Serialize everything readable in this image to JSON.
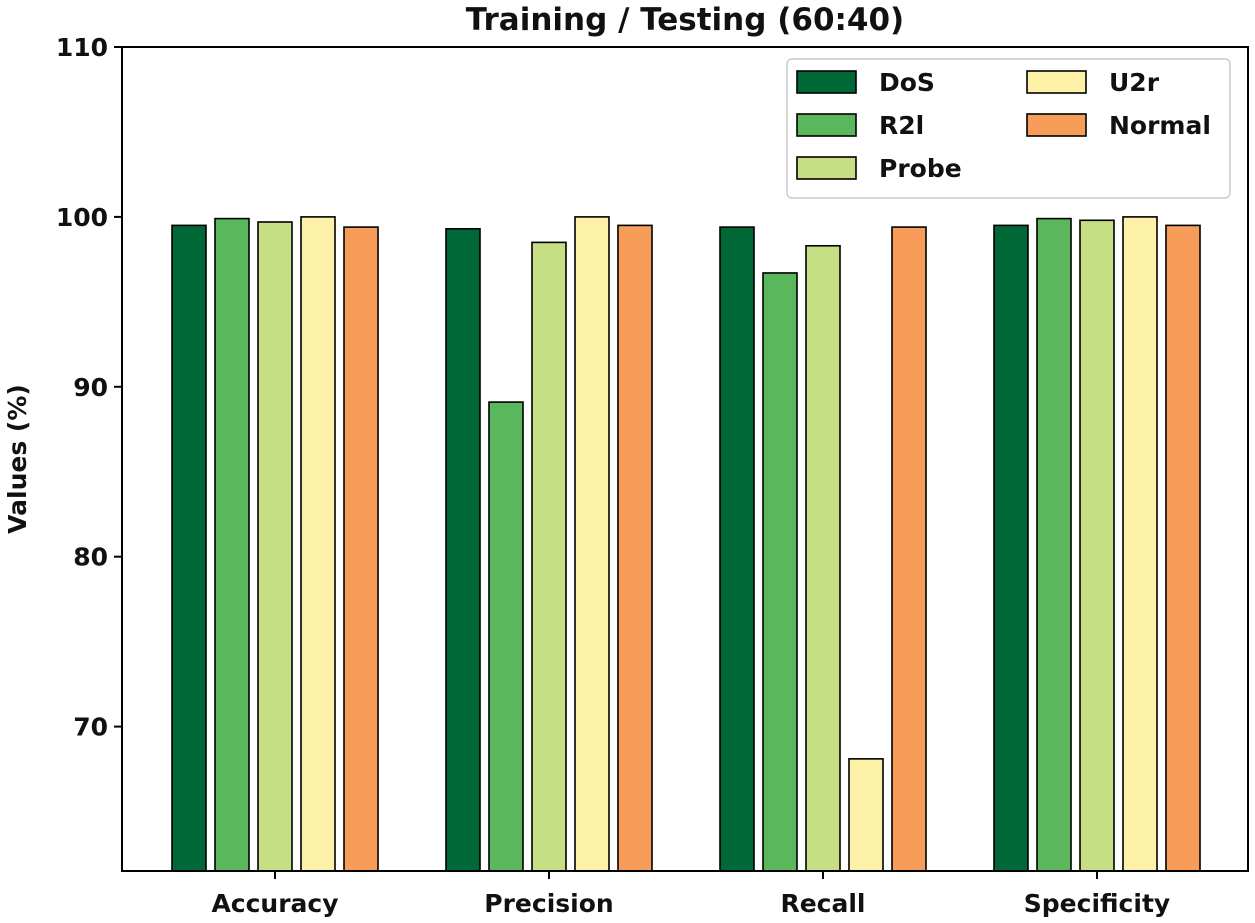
{
  "chart_data": {
    "type": "bar",
    "title": "Training / Testing (60:40)",
    "xlabel": "",
    "ylabel": "Values (%)",
    "ylim": [
      61.5,
      110
    ],
    "yticks": [
      70,
      80,
      90,
      100,
      110
    ],
    "categories": [
      "Accuracy",
      "Precision",
      "Recall",
      "Specificity"
    ],
    "series": [
      {
        "name": "DoS",
        "color": "#006837",
        "values": [
          99.5,
          99.3,
          99.4,
          99.5
        ]
      },
      {
        "name": "R2l",
        "color": "#5ab75c",
        "values": [
          99.9,
          89.1,
          96.7,
          99.9
        ]
      },
      {
        "name": "Probe",
        "color": "#c6df84",
        "values": [
          99.7,
          98.5,
          98.3,
          99.8
        ]
      },
      {
        "name": "U2r",
        "color": "#fdf1a8",
        "values": [
          100.0,
          100.0,
          68.1,
          100.0
        ]
      },
      {
        "name": "Normal",
        "color": "#f89d59",
        "values": [
          99.4,
          99.5,
          99.4,
          99.5
        ]
      }
    ],
    "legend_position": "top-right",
    "legend_columns": 2,
    "grid": false
  }
}
